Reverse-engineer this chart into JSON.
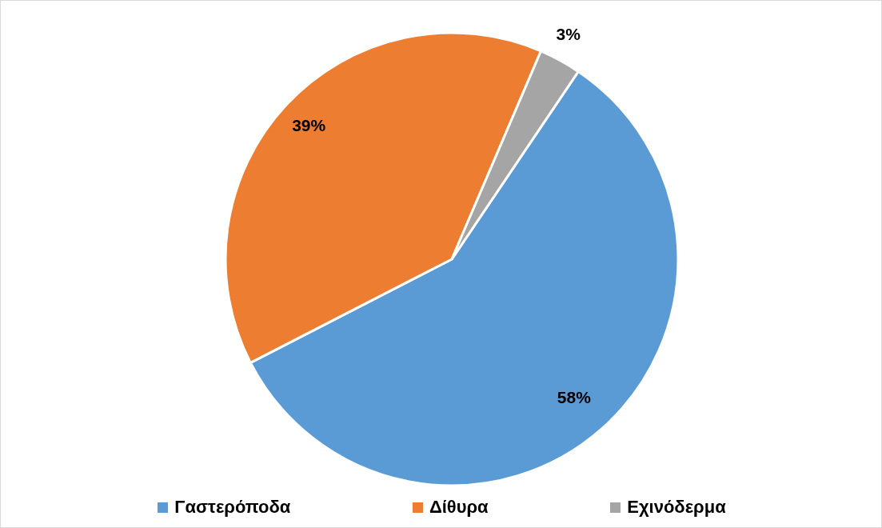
{
  "chart_data": {
    "type": "pie",
    "categories": [
      "Γαστερόποδα",
      "Δίθυρα",
      "Εχινόδερμα"
    ],
    "values": [
      58,
      39,
      3
    ],
    "colors": [
      "#5b9bd5",
      "#ed7d31",
      "#a5a5a5"
    ],
    "value_labels": [
      "58%",
      "39%",
      "3%"
    ],
    "legend": "bottom"
  }
}
